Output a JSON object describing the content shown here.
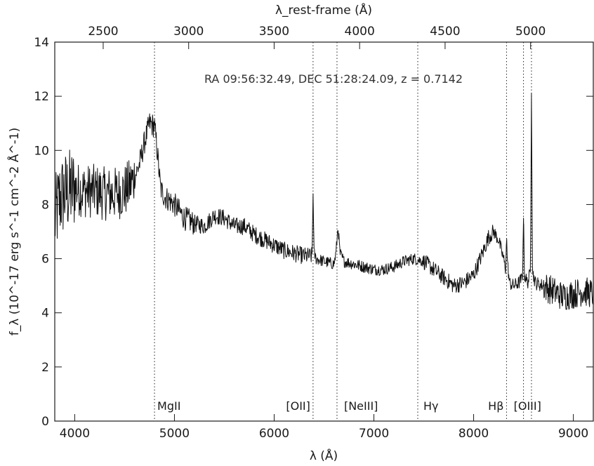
{
  "chart_data": {
    "type": "line",
    "title": "",
    "annotation": "RA 09:56:32.49, DEC 51:28:24.09, z = 0.7142",
    "xlabel": "λ (Å)",
    "ylabel": "f_λ (10^-17 erg s^-1 cm^-2 Å^-1)",
    "xlabel_top": "λ_rest-frame (Å)",
    "xlim": [
      3800,
      9200
    ],
    "ylim": [
      0,
      14
    ],
    "redshift": 0.7142,
    "x_ticks": [
      4000,
      5000,
      6000,
      7000,
      8000,
      9000
    ],
    "y_ticks": [
      0,
      2,
      4,
      6,
      8,
      10,
      12,
      14
    ],
    "top_ticks": [
      2500,
      3000,
      3500,
      4000,
      4500,
      5000
    ],
    "grid": false,
    "color": "#111111",
    "emission_lines": [
      {
        "name": "MgII",
        "x": 4800
      },
      {
        "name": "[OII]",
        "x": 6390
      },
      {
        "name": "[NeIII]",
        "x": 6630
      },
      {
        "name": "Hγ",
        "x": 7440
      },
      {
        "name": "Hβ",
        "x": 8330
      },
      {
        "name": "[OIII]",
        "x": 8500
      },
      {
        "name": "[OIII]",
        "x": 8580
      }
    ],
    "series": [
      {
        "x": [
          3800,
          3850,
          3900,
          3950,
          4000,
          4100,
          4200,
          4300,
          4400,
          4500,
          4550,
          4600,
          4650,
          4700,
          4750,
          4800,
          4830,
          4860,
          4900,
          5000,
          5100,
          5200,
          5300,
          5400,
          5500,
          5600,
          5700,
          5800,
          5900,
          6000,
          6100,
          6200,
          6300,
          6380,
          6390,
          6400,
          6420,
          6500,
          6600,
          6620,
          6640,
          6660,
          6700,
          6800,
          6900,
          7000,
          7100,
          7200,
          7300,
          7400,
          7500,
          7600,
          7700,
          7800,
          7900,
          8000,
          8100,
          8150,
          8200,
          8250,
          8300,
          8320,
          8330,
          8340,
          8360,
          8400,
          8450,
          8490,
          8500,
          8510,
          8540,
          8570,
          8580,
          8590,
          8620,
          8700,
          8800,
          8900,
          9000,
          9100,
          9200
        ],
        "y": [
          7.4,
          8.2,
          8.4,
          8.5,
          8.6,
          8.5,
          8.5,
          8.4,
          8.4,
          8.5,
          8.7,
          9.0,
          9.5,
          10.3,
          11.0,
          10.9,
          9.9,
          8.6,
          8.3,
          8.0,
          7.5,
          7.3,
          7.2,
          7.6,
          7.5,
          7.2,
          7.2,
          6.9,
          6.7,
          6.5,
          6.3,
          6.2,
          6.1,
          6.1,
          8.4,
          6.2,
          6.0,
          5.9,
          5.8,
          6.2,
          7.2,
          6.2,
          5.9,
          5.8,
          5.7,
          5.6,
          5.6,
          5.7,
          5.9,
          6.0,
          5.9,
          5.6,
          5.3,
          5.0,
          5.1,
          5.4,
          6.3,
          6.8,
          7.0,
          6.7,
          6.0,
          5.6,
          6.8,
          5.8,
          5.1,
          5.0,
          5.1,
          5.3,
          7.5,
          5.4,
          5.1,
          5.5,
          12.1,
          5.5,
          5.1,
          5.0,
          4.8,
          4.6,
          4.7,
          4.8,
          4.7
        ]
      }
    ]
  }
}
